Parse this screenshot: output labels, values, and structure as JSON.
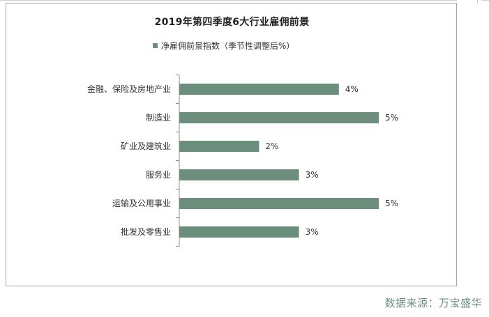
{
  "chart_data": {
    "type": "bar",
    "orientation": "horizontal",
    "title": "2019年第四季度6大行业雇佣前景",
    "categories": [
      "金融、保险及房地产业",
      "制造业",
      "矿业及建筑业",
      "服务业",
      "运输及公用事业",
      "批发及零售业"
    ],
    "series": [
      {
        "name": "净雇佣前景指数（季节性调整后%）",
        "values": [
          4,
          5,
          2,
          3,
          5,
          3
        ],
        "labels": [
          "4%",
          "5%",
          "2%",
          "3%",
          "5%",
          "3%"
        ],
        "color": "#6b8f7c"
      }
    ],
    "xlim": [
      0,
      5
    ],
    "grid": false,
    "legend": "top-center"
  },
  "source": "数据来源：万宝盛华"
}
